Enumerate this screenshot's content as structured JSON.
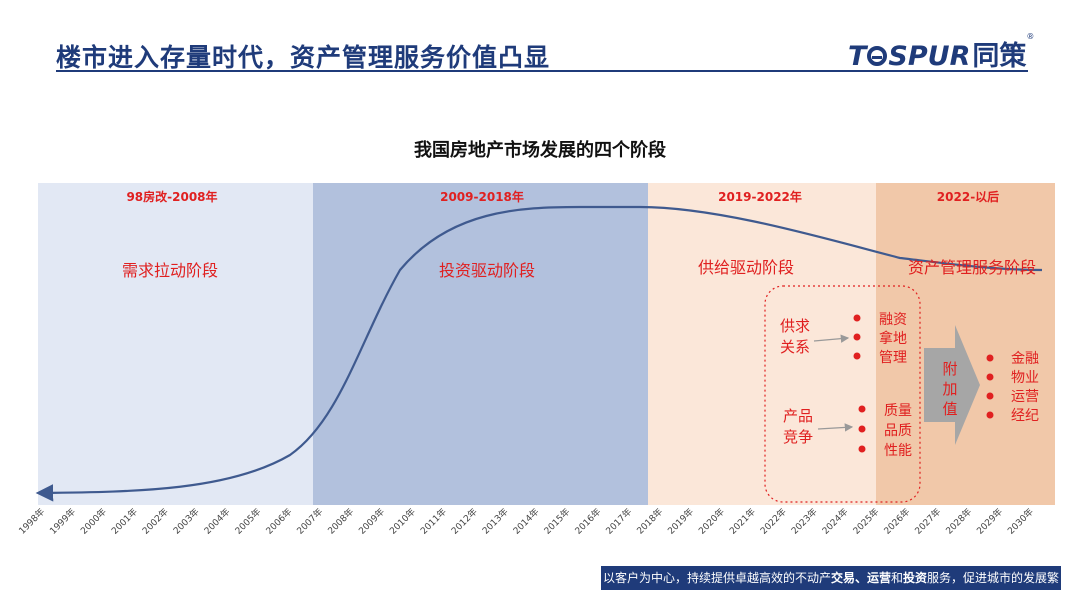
{
  "header": {
    "title": "楼市进入存量时代，资产管理服务价值凸显",
    "logo_latin_1": "T",
    "logo_latin_2": "SPUR",
    "logo_cn": "同策",
    "logo_reg": "®"
  },
  "diagram": {
    "title": "我国房地产市场发展的四个阶段",
    "phases": [
      {
        "period": "98房改-2008年",
        "name": "需求拉动阶段",
        "color": "#e2e8f4"
      },
      {
        "period": "2009-2018年",
        "name": "投资驱动阶段",
        "color": "#b2c1dd"
      },
      {
        "period": "2019-2022年",
        "name": "供给驱动阶段",
        "color": "#fbe7d9"
      },
      {
        "period": "2022-以后",
        "name": "资产管理服务阶段",
        "color": "#f1c8a9"
      }
    ],
    "years": [
      "1998年",
      "1999年",
      "2000年",
      "2001年",
      "2002年",
      "2003年",
      "2004年",
      "2005年",
      "2006年",
      "2007年",
      "2008年",
      "2009年",
      "2010年",
      "2011年",
      "2012年",
      "2013年",
      "2014年",
      "2015年",
      "2016年",
      "2017年",
      "2018年",
      "2019年",
      "2020年",
      "2021年",
      "2022年",
      "2023年",
      "2024年",
      "2025年",
      "2026年",
      "2027年",
      "2028年",
      "2029年",
      "2030年"
    ],
    "supply_box": {
      "left_top": [
        "供求",
        "关系"
      ],
      "left_bottom": [
        "产品",
        "竞争"
      ],
      "right_top": [
        "融资",
        "拿地",
        "管理"
      ],
      "right_bottom": [
        "质量",
        "品质",
        "性能"
      ]
    },
    "value_added": [
      "附",
      "加",
      "值"
    ],
    "services": [
      "金融",
      "物业",
      "运营",
      "经纪"
    ],
    "colors": {
      "red": "#e02020",
      "curve": "#3f5a8f",
      "arrow": "#999999"
    }
  },
  "footer": {
    "prefix": "以客户为中心，持续提供卓越高效的不动产",
    "kw1": "交易",
    "sep1": "、",
    "kw2": "运营",
    "sep2": "和",
    "kw3": "投资",
    "suffix": "服务，促进城市的发展繁荣"
  }
}
